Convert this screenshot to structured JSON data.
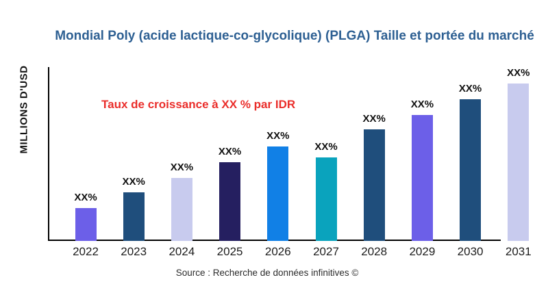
{
  "chart_data": {
    "type": "bar",
    "title": "Mondial Poly (acide lactique-co-glycolique) (PLGA) Taille et portée du marché",
    "ylabel": "MILLIONS D'USD",
    "xlabel": "",
    "annotation": "Taux de croissance à XX % par IDR",
    "source": "Source : Recherche de données infinitives ©",
    "categories": [
      "2022",
      "2023",
      "2024",
      "2025",
      "2026",
      "2027",
      "2028",
      "2029",
      "2030",
      "2031"
    ],
    "value_labels": [
      "XX%",
      "XX%",
      "XX%",
      "XX%",
      "XX%",
      "XX%",
      "XX%",
      "XX%",
      "XX%",
      "XX%"
    ],
    "values": [
      21,
      31,
      40,
      50,
      60,
      53,
      71,
      80,
      90,
      100
    ],
    "values_unit": "relative percent of tallest bar (actual values masked as XX%)",
    "bar_colors": [
      "#6c5fe8",
      "#1f4e7c",
      "#c8cbee",
      "#251f60",
      "#1180e6",
      "#0aa3bd",
      "#1f4e7c",
      "#6c5fe8",
      "#1f4e7c",
      "#c8cbee"
    ],
    "grid": false,
    "y_ticks": "none",
    "legend": "none",
    "colors": {
      "title_text": "#2e6093",
      "annotation_text": "#ea2d2a",
      "axis_line": "#000000",
      "label_text": "#111111"
    }
  }
}
